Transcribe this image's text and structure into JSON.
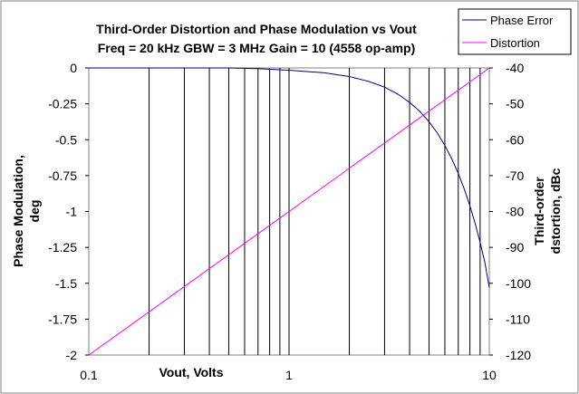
{
  "chart_data": {
    "type": "line",
    "title": "Third-Order Distortion and Phase Modulation vs Vout",
    "subtitle": "Freq = 20 kHz  GBW = 3 MHz Gain = 10 (4558 op-amp)",
    "xlabel": "Vout, Volts",
    "ylabel_left": [
      "Phase Modulation,",
      "deg"
    ],
    "ylabel_right": [
      "Third-order",
      "dstortion, dBc"
    ],
    "x_scale": "log",
    "xlim": [
      0.1,
      10
    ],
    "ylim_left": [
      -2,
      0
    ],
    "ylim_right": [
      -120,
      -40
    ],
    "x_tick_labels": [
      "0.1",
      "1",
      "10"
    ],
    "y_left_tick_labels": [
      "0",
      "-0.25",
      "-0.5",
      "-0.75",
      "-1",
      "-1.25",
      "-1.5",
      "-1.75",
      "-2"
    ],
    "y_right_tick_labels": [
      "-40",
      "-50",
      "-60",
      "-70",
      "-80",
      "-90",
      "-100",
      "-110",
      "-120"
    ],
    "grid": "vertical log minor/major",
    "legend_position": "top-right",
    "series": [
      {
        "name": "Phase Error",
        "axis": "left",
        "color": "#000080",
        "x": [
          0.1,
          0.2,
          0.3,
          0.5,
          0.7,
          1,
          1.5,
          2,
          2.5,
          3,
          3.5,
          4,
          4.5,
          5,
          5.5,
          6,
          6.5,
          7,
          7.5,
          8,
          8.5,
          9,
          9.5,
          10
        ],
        "y": [
          0,
          0,
          0,
          0,
          -0.005,
          -0.016,
          -0.034,
          -0.06,
          -0.094,
          -0.134,
          -0.183,
          -0.24,
          -0.303,
          -0.375,
          -0.453,
          -0.54,
          -0.634,
          -0.735,
          -0.844,
          -0.96,
          -1.084,
          -1.215,
          -1.354,
          -1.53
        ]
      },
      {
        "name": "Distortion",
        "axis": "right",
        "color": "#ff00ff",
        "x": [
          0.1,
          10
        ],
        "y": [
          -120,
          -40
        ]
      }
    ]
  }
}
